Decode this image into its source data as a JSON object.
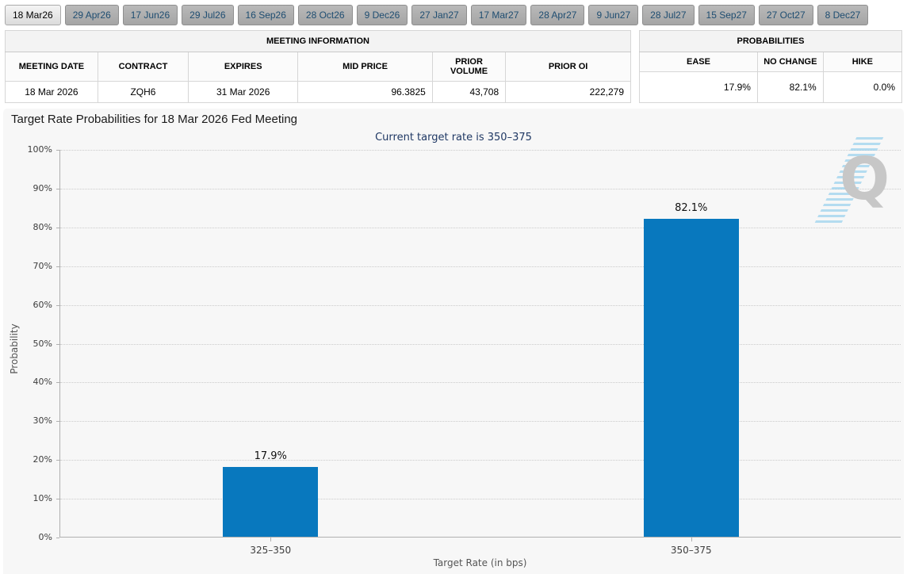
{
  "tabs": {
    "items": [
      {
        "label": "18 Mar26",
        "selected": true
      },
      {
        "label": "29 Apr26",
        "selected": false
      },
      {
        "label": "17 Jun26",
        "selected": false
      },
      {
        "label": "29 Jul26",
        "selected": false
      },
      {
        "label": "16 Sep26",
        "selected": false
      },
      {
        "label": "28 Oct26",
        "selected": false
      },
      {
        "label": "9 Dec26",
        "selected": false
      },
      {
        "label": "27 Jan27",
        "selected": false
      },
      {
        "label": "17 Mar27",
        "selected": false
      },
      {
        "label": "28 Apr27",
        "selected": false
      },
      {
        "label": "9 Jun27",
        "selected": false
      },
      {
        "label": "28 Jul27",
        "selected": false
      },
      {
        "label": "15 Sep27",
        "selected": false
      },
      {
        "label": "27 Oct27",
        "selected": false
      },
      {
        "label": "8 Dec27",
        "selected": false
      }
    ]
  },
  "meeting_information": {
    "title": "MEETING INFORMATION",
    "columns": [
      "MEETING DATE",
      "CONTRACT",
      "EXPIRES",
      "MID PRICE",
      "PRIOR VOLUME",
      "PRIOR OI"
    ],
    "align": [
      "center",
      "center",
      "center",
      "right",
      "right",
      "right"
    ],
    "rows": [
      [
        "18 Mar 2026",
        "ZQH6",
        "31 Mar 2026",
        "96.3825",
        "43,708",
        "222,279"
      ]
    ]
  },
  "probabilities": {
    "title": "PROBABILITIES",
    "columns": [
      "EASE",
      "NO CHANGE",
      "HIKE"
    ],
    "align": [
      "right",
      "right",
      "right"
    ],
    "rows": [
      [
        "17.9%",
        "82.1%",
        "0.0%"
      ]
    ]
  },
  "chart_data": {
    "type": "bar",
    "title": "Target Rate Probabilities for 18 Mar 2026 Fed Meeting",
    "subtitle": "Current target rate is 350–375",
    "categories": [
      "325–350",
      "350–375"
    ],
    "values": [
      17.9,
      82.1
    ],
    "value_labels": [
      "17.9%",
      "82.1%"
    ],
    "xlabel": "Target Rate (in bps)",
    "ylabel": "Probability",
    "ylim": [
      0,
      100
    ],
    "ytick_step": 10,
    "ytick_suffix": "%",
    "grid": "horizontal-dotted",
    "legend": "none",
    "bar_color": "#0878BE"
  },
  "icons": {
    "menu": "hamburger-icon",
    "watermark_letter": "Q"
  },
  "colors": {
    "bar_blue": "#0878BE",
    "subtitle_navy": "#1F3864",
    "panel_gray": "#F7F7F7",
    "tab_text_blue": "#1E4D71"
  }
}
